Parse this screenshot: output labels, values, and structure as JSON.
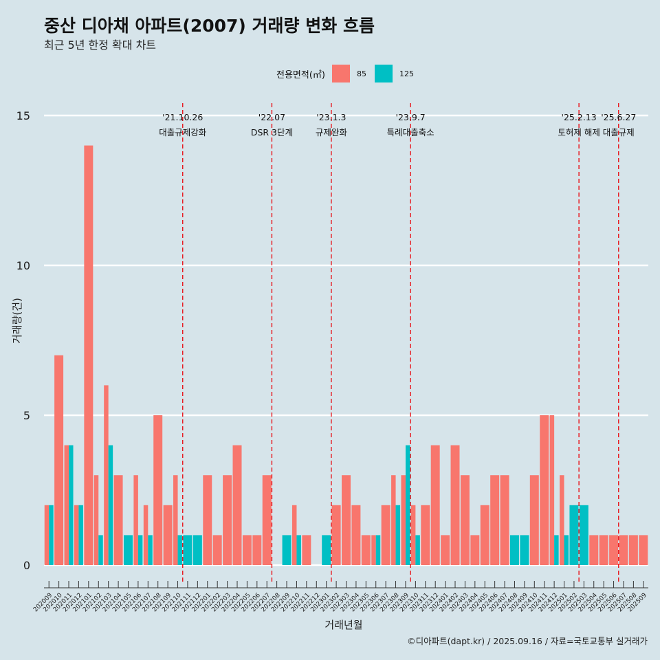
{
  "title": "중산 디아채 아파트(2007) 거래량 변화 흐름",
  "subtitle": "최근 5년 한정 확대 차트",
  "caption": "©디아파트(dapt.kr) / 2025.09.16 / 자료=국토교통부 실거래가",
  "legend": {
    "title": "전용면적(㎡)",
    "items": [
      {
        "label": "85",
        "color": "#f8766d"
      },
      {
        "label": "125",
        "color": "#00bfc4"
      }
    ]
  },
  "chart_data": {
    "type": "bar",
    "xlabel": "거래년월",
    "ylabel": "거래량(건)",
    "ylim": [
      0,
      15
    ],
    "yticks": [
      0,
      5,
      10,
      15
    ],
    "categories": [
      "202009",
      "202010",
      "202011",
      "202012",
      "202101",
      "202102",
      "202103",
      "202104",
      "202105",
      "202106",
      "202107",
      "202108",
      "202109",
      "202110",
      "202111",
      "202112",
      "202201",
      "202202",
      "202203",
      "202204",
      "202205",
      "202206",
      "202207",
      "202208",
      "202209",
      "202210",
      "202211",
      "202212",
      "202301",
      "202302",
      "202303",
      "202304",
      "202305",
      "202306",
      "202307",
      "202308",
      "202309",
      "202310",
      "202311",
      "202312",
      "202401",
      "202402",
      "202403",
      "202404",
      "202405",
      "202406",
      "202407",
      "202408",
      "202409",
      "202410",
      "202411",
      "202412",
      "202501",
      "202502",
      "202503",
      "202504",
      "202505",
      "202506",
      "202507",
      "202508",
      "202509"
    ],
    "series": [
      {
        "name": "85",
        "color": "#f8766d",
        "values": [
          2,
          7,
          4,
          2,
          14,
          3,
          6,
          3,
          0,
          3,
          2,
          5,
          2,
          3,
          0,
          0,
          3,
          1,
          3,
          4,
          1,
          1,
          3,
          0,
          0,
          2,
          1,
          0,
          0,
          2,
          3,
          2,
          1,
          1,
          2,
          3,
          3,
          2,
          2,
          4,
          1,
          4,
          3,
          1,
          2,
          3,
          3,
          0,
          0,
          3,
          5,
          5,
          3,
          0,
          0,
          1,
          1,
          1,
          1,
          1,
          1
        ]
      },
      {
        "name": "125",
        "color": "#00bfc4",
        "values": [
          2,
          0,
          4,
          2,
          0,
          1,
          4,
          0,
          1,
          1,
          1,
          0,
          0,
          1,
          1,
          1,
          0,
          0,
          0,
          0,
          0,
          0,
          0,
          0,
          1,
          1,
          0,
          0,
          1,
          0,
          0,
          0,
          0,
          1,
          0,
          2,
          4,
          1,
          0,
          0,
          0,
          0,
          0,
          0,
          0,
          0,
          0,
          1,
          1,
          0,
          0,
          1,
          1,
          2,
          2,
          0,
          0,
          0,
          0,
          0,
          0
        ]
      }
    ],
    "events": [
      {
        "date": "'21.10.26",
        "label": "대출규제강화",
        "after": "202110"
      },
      {
        "date": "'22.07",
        "label": "DSR 3단계",
        "after": "202207"
      },
      {
        "date": "'23.1.3",
        "label": "규제완화",
        "after": "202301"
      },
      {
        "date": "'23.9.7",
        "label": "특례대출축소",
        "after": "202309"
      },
      {
        "date": "'25.2.13",
        "label": "토허제 해제",
        "after": "202502"
      },
      {
        "date": "'25.6.27",
        "label": "대출규제",
        "after": "202506"
      }
    ],
    "grid": true,
    "legend_position": "top"
  }
}
